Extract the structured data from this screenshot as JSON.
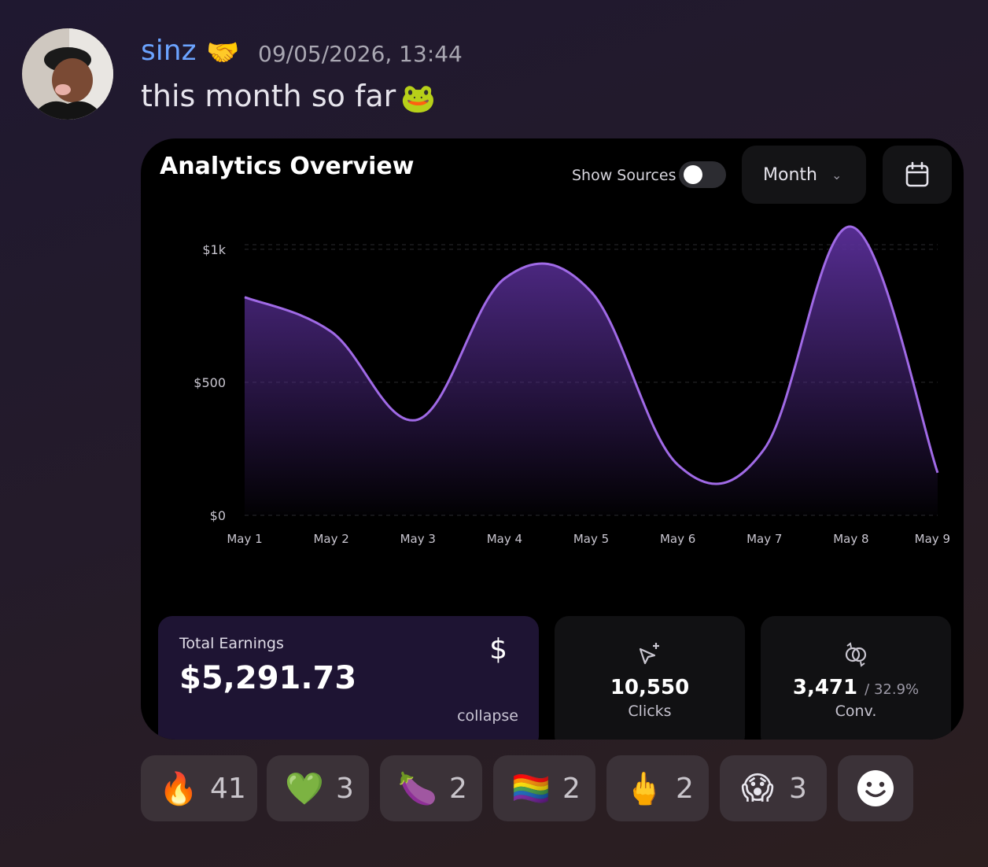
{
  "message": {
    "username": "sinz",
    "badge_emoji": "🤝",
    "timestamp": "09/05/2026, 13:44",
    "text": "this month so far",
    "text_emoji": "🐸"
  },
  "card": {
    "title": "Analytics Overview",
    "show_sources_label": "Show Sources",
    "show_sources_on": false,
    "period_label": "Month",
    "period_icon": "chevron-down-icon",
    "calendar_icon": "calendar-icon"
  },
  "chart_data": {
    "type": "area",
    "x": [
      "May 1",
      "May 2",
      "May 3",
      "May 4",
      "May 5",
      "May 6",
      "May 7",
      "May 8",
      "May 9"
    ],
    "values": [
      820,
      690,
      360,
      890,
      840,
      190,
      250,
      1085,
      160
    ],
    "y_ticks": [
      {
        "value": 0,
        "label": "$0"
      },
      {
        "value": 500,
        "label": "$500"
      },
      {
        "value": 1000,
        "label": "$1k"
      }
    ],
    "ylim": [
      0,
      1100
    ],
    "grid": "dashed-horizontal",
    "line_color": "#a06ae6",
    "fill_color": "#5a2f99"
  },
  "stats": {
    "earnings_label": "Total Earnings",
    "earnings_value": "$5,291.73",
    "earnings_icon": "$",
    "collapse_label": "collapse",
    "clicks_value": "10,550",
    "clicks_label": "Clicks",
    "conv_value": "3,471",
    "conv_rate": "/ 32.9%",
    "conv_label": "Conv."
  },
  "reactions": [
    {
      "emoji": "🔥",
      "count": "41"
    },
    {
      "emoji": "💚",
      "count": "3"
    },
    {
      "emoji": "🍆",
      "count": "2"
    },
    {
      "emoji": "🏳️‍🌈",
      "count": "2"
    },
    {
      "emoji": "🖕",
      "count": "2"
    },
    {
      "emoji": "😱",
      "count": "3"
    }
  ],
  "add_reaction_icon": "smiley-icon"
}
